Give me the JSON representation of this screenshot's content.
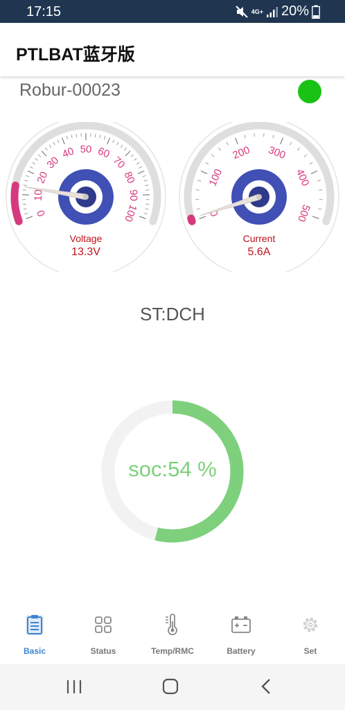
{
  "status_bar": {
    "time": "17:15",
    "network": "4G+",
    "battery_percent": "20%"
  },
  "app": {
    "title": "PTLBAT蓝牙版"
  },
  "device": {
    "name": "Robur-00023",
    "connection_color": "#19c314"
  },
  "voltage_gauge": {
    "label": "Voltage",
    "value_text": "13.3V",
    "value": 13.3,
    "min": 0,
    "max": 100,
    "ticks": [
      "0",
      "10",
      "20",
      "30",
      "40",
      "50",
      "60",
      "70",
      "80",
      "90",
      "100"
    ]
  },
  "current_gauge": {
    "label": "Current",
    "value_text": "5.6A",
    "value": 5.6,
    "min": 0,
    "max": 500,
    "ticks": [
      "0",
      "100",
      "200",
      "300",
      "400",
      "500"
    ]
  },
  "state": {
    "text": "ST:DCH"
  },
  "soc": {
    "text": "soc:54 %",
    "percent": 54,
    "color": "#7ed07d"
  },
  "bottom_nav": [
    {
      "label": "Basic",
      "icon": "clipboard-icon",
      "active": true
    },
    {
      "label": "Status",
      "icon": "grid-icon",
      "active": false
    },
    {
      "label": "Temp/RMC",
      "icon": "thermometer-icon",
      "active": false
    },
    {
      "label": "Battery",
      "icon": "battery-icon",
      "active": false
    },
    {
      "label": "Set",
      "icon": "gear-icon",
      "active": false
    }
  ]
}
